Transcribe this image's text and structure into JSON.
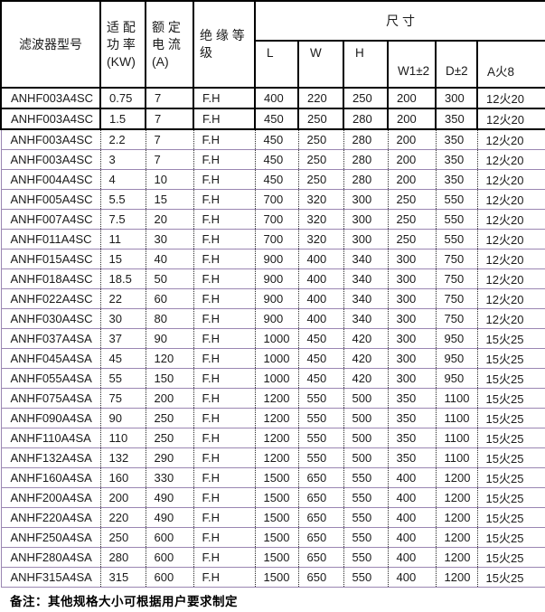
{
  "table": {
    "header": {
      "model": "滤波器型号",
      "power": "适 配\n功 率\n(KW)",
      "current": "额 定\n电 流\n(A)",
      "insulation": "绝 缘 等\n级",
      "dimensions": "尺 寸",
      "dim_cols": [
        "L",
        "W",
        "H",
        "W1±2",
        "D±2",
        "A火8"
      ]
    },
    "col_keys": [
      "model",
      "power-kw",
      "current-a",
      "insulation-grade",
      "dim-l",
      "dim-w",
      "dim-h",
      "dim-w1",
      "dim-d",
      "dim-a"
    ],
    "black_border_rows": 2,
    "rows": [
      [
        "ANHF003A4SC",
        "0.75",
        "7",
        "F.H",
        "400",
        "220",
        "250",
        "200",
        "300",
        "12火20"
      ],
      [
        "ANHF003A4SC",
        "1.5",
        "7",
        "F.H",
        "450",
        "250",
        "280",
        "200",
        "350",
        "12火20"
      ],
      [
        "ANHF003A4SC",
        "2.2",
        "7",
        "F.H",
        "450",
        "250",
        "280",
        "200",
        "350",
        "12火20"
      ],
      [
        "ANHF003A4SC",
        "3",
        "7",
        "F.H",
        "450",
        "250",
        "280",
        "200",
        "350",
        "12火20"
      ],
      [
        "ANHF004A4SC",
        "4",
        "10",
        "F.H",
        "450",
        "250",
        "280",
        "200",
        "350",
        "12火20"
      ],
      [
        "ANHF005A4SC",
        "5.5",
        "15",
        "F.H",
        "700",
        "320",
        "300",
        "250",
        "550",
        "12火20"
      ],
      [
        "ANHF007A4SC",
        "7.5",
        "20",
        "F.H",
        "700",
        "320",
        "300",
        "250",
        "550",
        "12火20"
      ],
      [
        "ANHF011A4SC",
        "11",
        "30",
        "F.H",
        "700",
        "320",
        "300",
        "250",
        "550",
        "12火20"
      ],
      [
        "ANHF015A4SC",
        "15",
        "40",
        "F.H",
        "900",
        "400",
        "340",
        "300",
        "750",
        "12火20"
      ],
      [
        "ANHF018A4SC",
        "18.5",
        "50",
        "F.H",
        "900",
        "400",
        "340",
        "300",
        "750",
        "12火20"
      ],
      [
        "ANHF022A4SC",
        "22",
        "60",
        "F.H",
        "900",
        "400",
        "340",
        "300",
        "750",
        "12火20"
      ],
      [
        "ANHF030A4SC",
        "30",
        "80",
        "F.H",
        "900",
        "400",
        "340",
        "300",
        "750",
        "12火20"
      ],
      [
        "ANHF037A4SA",
        "37",
        "90",
        "F.H",
        "1000",
        "450",
        "420",
        "300",
        "950",
        "15火25"
      ],
      [
        "ANHF045A4SA",
        "45",
        "120",
        "F.H",
        "1000",
        "450",
        "420",
        "300",
        "950",
        "15火25"
      ],
      [
        "ANHF055A4SA",
        "55",
        "150",
        "F.H",
        "1000",
        "450",
        "420",
        "300",
        "950",
        "15火25"
      ],
      [
        "ANHF075A4SA",
        "75",
        "200",
        "F.H",
        "1200",
        "550",
        "500",
        "350",
        "1100",
        "15火25"
      ],
      [
        "ANHF090A4SA",
        "90",
        "250",
        "F.H",
        "1200",
        "550",
        "500",
        "350",
        "1100",
        "15火25"
      ],
      [
        "ANHF110A4SA",
        "110",
        "250",
        "F.H",
        "1200",
        "550",
        "500",
        "350",
        "1100",
        "15火25"
      ],
      [
        "ANHF132A4SA",
        "132",
        "290",
        "F.H",
        "1200",
        "550",
        "500",
        "350",
        "1100",
        "15火25"
      ],
      [
        "ANHF160A4SA",
        "160",
        "330",
        "F.H",
        "1500",
        "650",
        "550",
        "400",
        "1200",
        "15火25"
      ],
      [
        "ANHF200A4SA",
        "200",
        "490",
        "F.H",
        "1500",
        "650",
        "550",
        "400",
        "1200",
        "15火25"
      ],
      [
        "ANHF220A4SA",
        "220",
        "490",
        "F.H",
        "1500",
        "650",
        "550",
        "400",
        "1200",
        "15火25"
      ],
      [
        "ANHF250A4SA",
        "250",
        "600",
        "F.H",
        "1500",
        "650",
        "550",
        "400",
        "1200",
        "15火25"
      ],
      [
        "ANHF280A4SA",
        "280",
        "600",
        "F.H",
        "1500",
        "650",
        "550",
        "400",
        "1200",
        "15火25"
      ],
      [
        "ANHF315A4SA",
        "315",
        "600",
        "F.H",
        "1500",
        "650",
        "550",
        "400",
        "1200",
        "15火25"
      ]
    ],
    "note": "备注：其他规格大小可根据用户要求制定"
  },
  "colors": {
    "grid_black": "#000000",
    "grid_purple": "#9a86b2",
    "text": "#1a1a1a",
    "background": "#ffffff"
  }
}
